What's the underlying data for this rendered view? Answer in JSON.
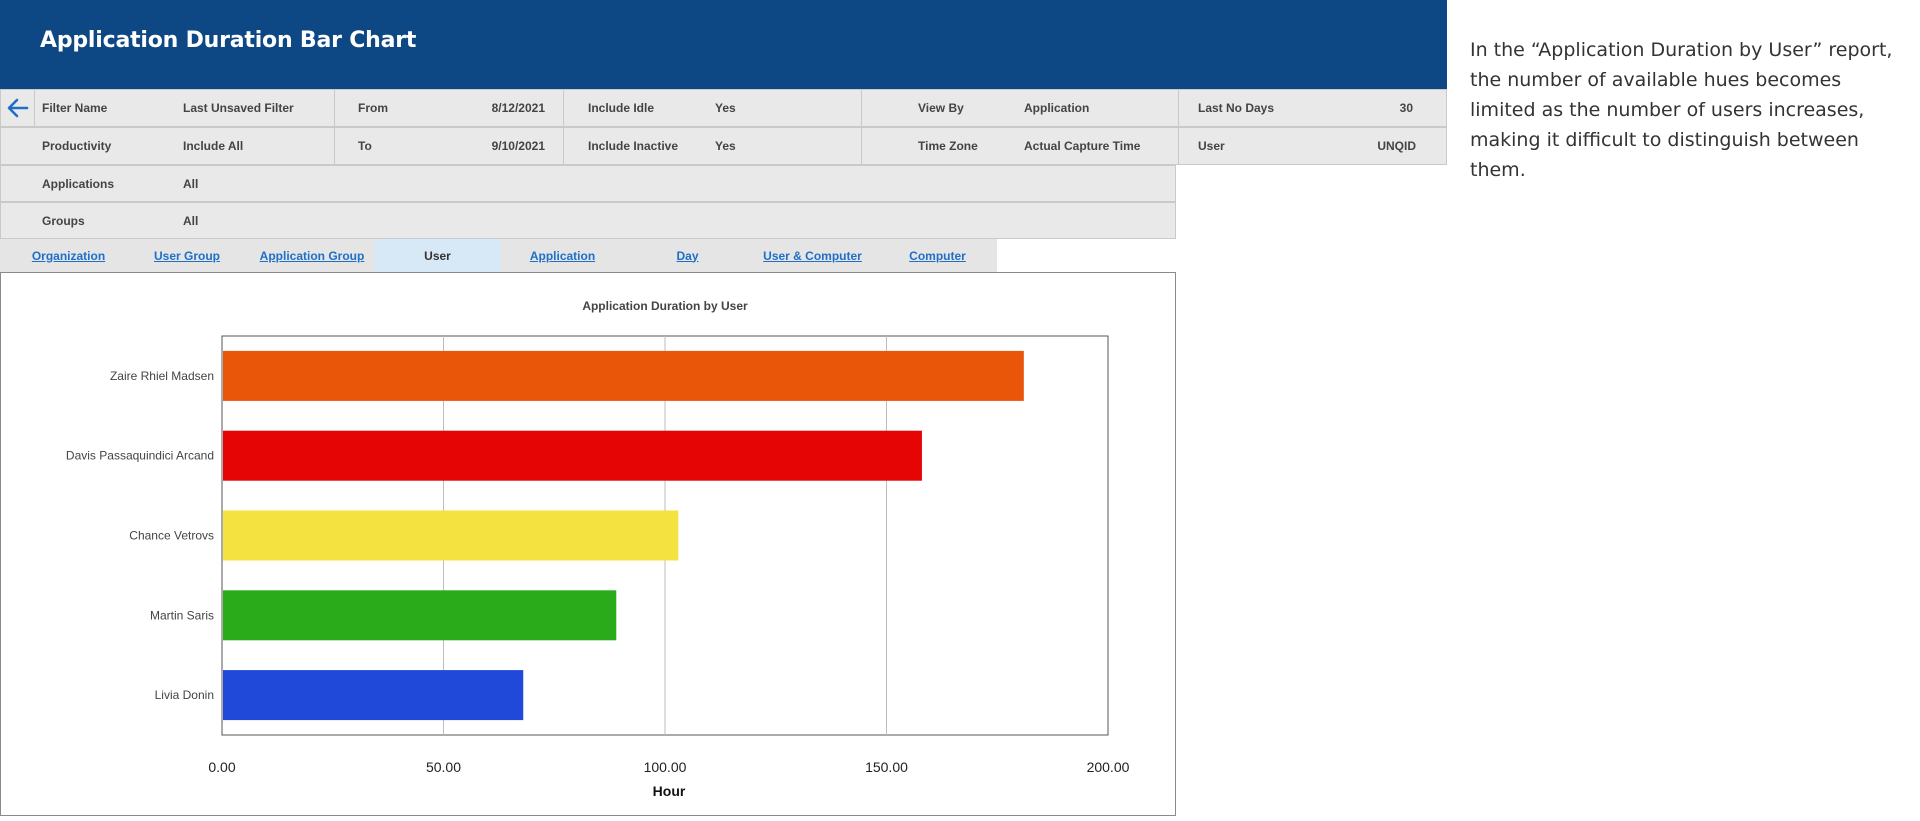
{
  "header": {
    "title": "Application Duration Bar Chart"
  },
  "note": "In the “Application Duration by User” report, the number of available hues becomes limited as the number of users increases, making it difficult to distinguish between them.",
  "filters": {
    "back_icon": "arrow-left-icon",
    "filter_name_label": "Filter Name",
    "filter_name_value": "Last Unsaved Filter",
    "from_label": "From",
    "from_value": "8/12/2021",
    "include_idle_label": "Include Idle",
    "include_idle_value": "Yes",
    "view_by_label": "View By",
    "view_by_value": "Application",
    "last_no_days_label": "Last No Days",
    "last_no_days_value": "30",
    "productivity_label": "Productivity",
    "productivity_value": "Include All",
    "to_label": "To",
    "to_value": "9/10/2021",
    "include_inactive_label": "Include Inactive",
    "include_inactive_value": "Yes",
    "time_zone_label": "Time Zone",
    "time_zone_value": "Actual Capture Time",
    "user_label": "User",
    "user_value": "UNQID",
    "applications_label": "Applications",
    "applications_value": "All",
    "groups_label": "Groups",
    "groups_value": "All"
  },
  "tabs": [
    {
      "label": "Organization",
      "active": false
    },
    {
      "label": "User Group",
      "active": false
    },
    {
      "label": "Application Group",
      "active": false
    },
    {
      "label": "User",
      "active": true
    },
    {
      "label": "Application",
      "active": false
    },
    {
      "label": "Day",
      "active": false
    },
    {
      "label": "User & Computer",
      "active": false
    },
    {
      "label": "Computer",
      "active": false
    }
  ],
  "colors": {
    "header_bg": "#0d4885",
    "tab_link": "#1f6fc7",
    "active_tab_bg": "#d7e8f7"
  },
  "chart_data": {
    "type": "bar",
    "orientation": "horizontal",
    "title": "Application Duration by User",
    "xlabel": "Hour",
    "ylabel": "",
    "xlim": [
      0,
      200
    ],
    "ticks": [
      "0.00",
      "50.00",
      "100.00",
      "150.00",
      "200.00"
    ],
    "tick_values": [
      0,
      50,
      100,
      150,
      200
    ],
    "grid": true,
    "categories": [
      "Zaire Rhiel Madsen",
      "Davis Passaquindici Arcand",
      "Chance Vetrovs",
      "Martin Saris",
      "Livia Donin"
    ],
    "values": [
      181,
      158,
      103,
      89,
      68
    ],
    "bar_colors": [
      "#ea5609",
      "#e60505",
      "#f3e240",
      "#2aab19",
      "#2149d9"
    ]
  }
}
